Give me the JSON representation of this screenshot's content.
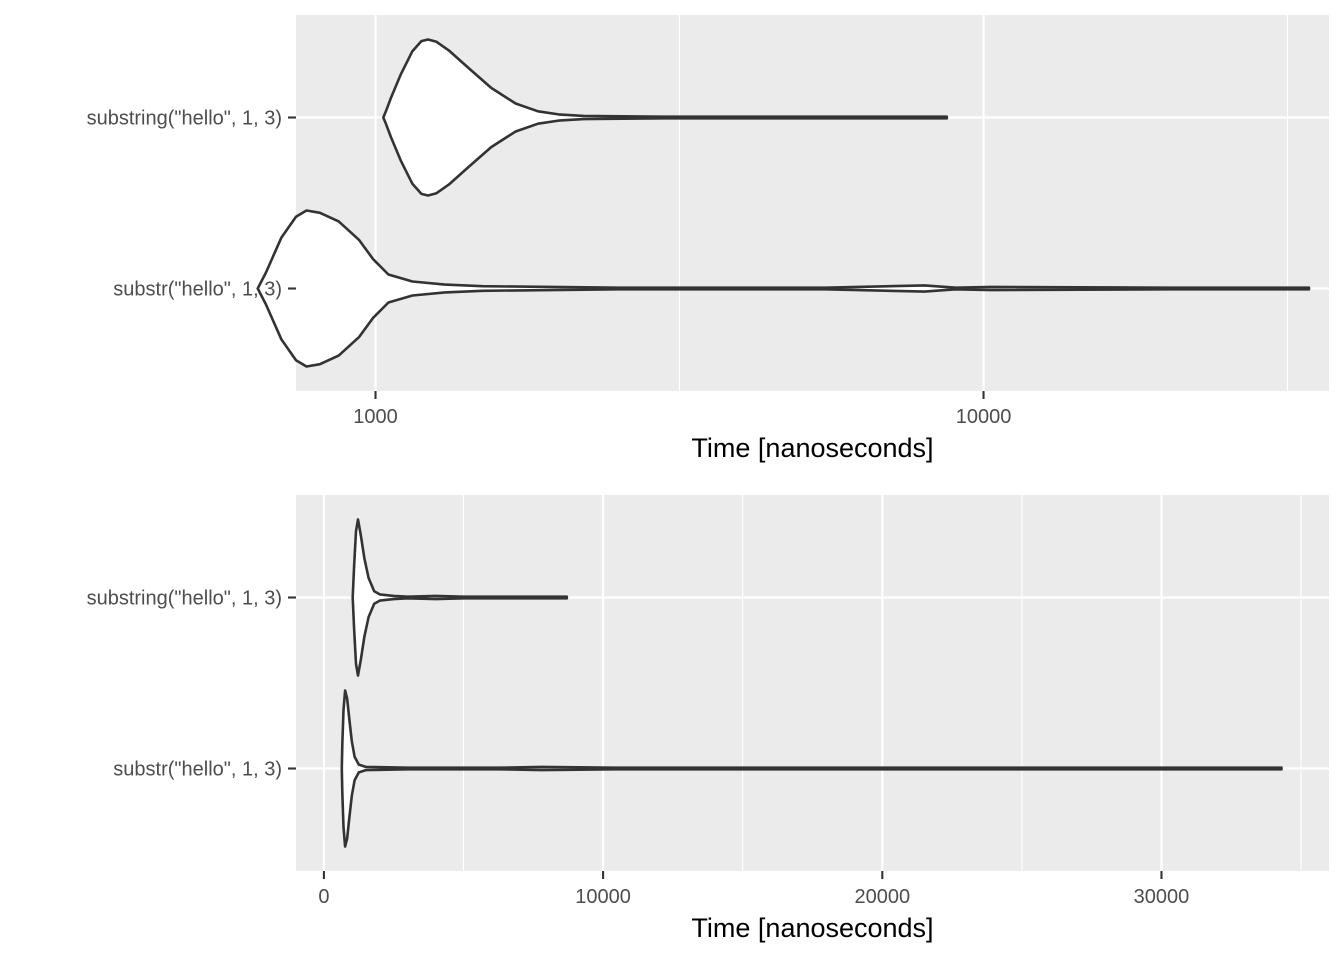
{
  "colors": {
    "panel_background": "#ebebeb",
    "gridline": "#ffffff",
    "violin_fill": "#ffffff",
    "violin_outline": "#333333",
    "tick_text": "#4d4d4d",
    "axis_title_text": "#000000"
  },
  "chart_data": [
    {
      "type": "violin",
      "orientation": "horizontal",
      "xscale": "log10",
      "xlabel": "Time [nanoseconds]",
      "xlim": [
        740,
        37000
      ],
      "xticks": [
        1000,
        10000
      ],
      "xtick_labels": [
        "1000",
        "10000"
      ],
      "x_minor_gridlines": [
        3162,
        31623
      ],
      "grid": true,
      "categories": [
        "substring(\"hello\", 1, 3)",
        "substr(\"hello\", 1, 3)"
      ],
      "series": [
        {
          "category": "substring(\"hello\", 1, 3)",
          "density": [
            [
              1030,
              0.0
            ],
            [
              1040,
              0.08
            ],
            [
              1060,
              0.25
            ],
            [
              1100,
              0.55
            ],
            [
              1150,
              0.85
            ],
            [
              1190,
              0.98
            ],
            [
              1220,
              1.0
            ],
            [
              1260,
              0.97
            ],
            [
              1320,
              0.86
            ],
            [
              1420,
              0.64
            ],
            [
              1550,
              0.38
            ],
            [
              1700,
              0.18
            ],
            [
              1850,
              0.08
            ],
            [
              2000,
              0.04
            ],
            [
              2200,
              0.02
            ],
            [
              3000,
              0.01
            ],
            [
              4300,
              0.01
            ],
            [
              6000,
              0.01
            ],
            [
              7500,
              0.01
            ],
            [
              8700,
              0.01
            ]
          ]
        },
        {
          "category": "substr(\"hello\", 1, 3)",
          "density": [
            [
              640,
              0.0
            ],
            [
              660,
              0.2
            ],
            [
              700,
              0.65
            ],
            [
              740,
              0.92
            ],
            [
              770,
              1.0
            ],
            [
              810,
              0.97
            ],
            [
              870,
              0.86
            ],
            [
              940,
              0.62
            ],
            [
              990,
              0.38
            ],
            [
              1050,
              0.18
            ],
            [
              1150,
              0.09
            ],
            [
              1300,
              0.05
            ],
            [
              1500,
              0.03
            ],
            [
              2500,
              0.01
            ],
            [
              5500,
              0.01
            ],
            [
              8000,
              0.04
            ],
            [
              9000,
              0.01
            ],
            [
              10300,
              0.02
            ],
            [
              20000,
              0.01
            ],
            [
              34300,
              0.01
            ]
          ]
        }
      ]
    },
    {
      "type": "violin",
      "orientation": "horizontal",
      "xscale": "linear",
      "xlabel": "Time [nanoseconds]",
      "xlim": [
        -1000,
        36000
      ],
      "xticks": [
        0,
        10000,
        20000,
        30000
      ],
      "xtick_labels": [
        "0",
        "10000",
        "20000",
        "30000"
      ],
      "x_minor_gridlines": [
        5000,
        15000,
        25000,
        35000
      ],
      "grid": true,
      "categories": [
        "substring(\"hello\", 1, 3)",
        "substr(\"hello\", 1, 3)"
      ],
      "series": [
        {
          "category": "substring(\"hello\", 1, 3)",
          "density": [
            [
              1030,
              0.0
            ],
            [
              1080,
              0.4
            ],
            [
              1150,
              0.85
            ],
            [
              1220,
              1.0
            ],
            [
              1320,
              0.8
            ],
            [
              1450,
              0.5
            ],
            [
              1600,
              0.25
            ],
            [
              1800,
              0.08
            ],
            [
              2000,
              0.04
            ],
            [
              2500,
              0.02
            ],
            [
              3000,
              0.01
            ],
            [
              4000,
              0.02
            ],
            [
              5000,
              0.01
            ],
            [
              6000,
              0.01
            ],
            [
              7000,
              0.01
            ],
            [
              8000,
              0.01
            ],
            [
              8700,
              0.01
            ]
          ]
        },
        {
          "category": "substr(\"hello\", 1, 3)",
          "density": [
            [
              640,
              0.0
            ],
            [
              660,
              0.3
            ],
            [
              700,
              0.75
            ],
            [
              760,
              1.0
            ],
            [
              830,
              0.9
            ],
            [
              920,
              0.6
            ],
            [
              1000,
              0.35
            ],
            [
              1100,
              0.15
            ],
            [
              1250,
              0.05
            ],
            [
              1500,
              0.02
            ],
            [
              3000,
              0.01
            ],
            [
              6300,
              0.01
            ],
            [
              7800,
              0.02
            ],
            [
              10400,
              0.01
            ],
            [
              34300,
              0.01
            ]
          ]
        }
      ]
    }
  ]
}
